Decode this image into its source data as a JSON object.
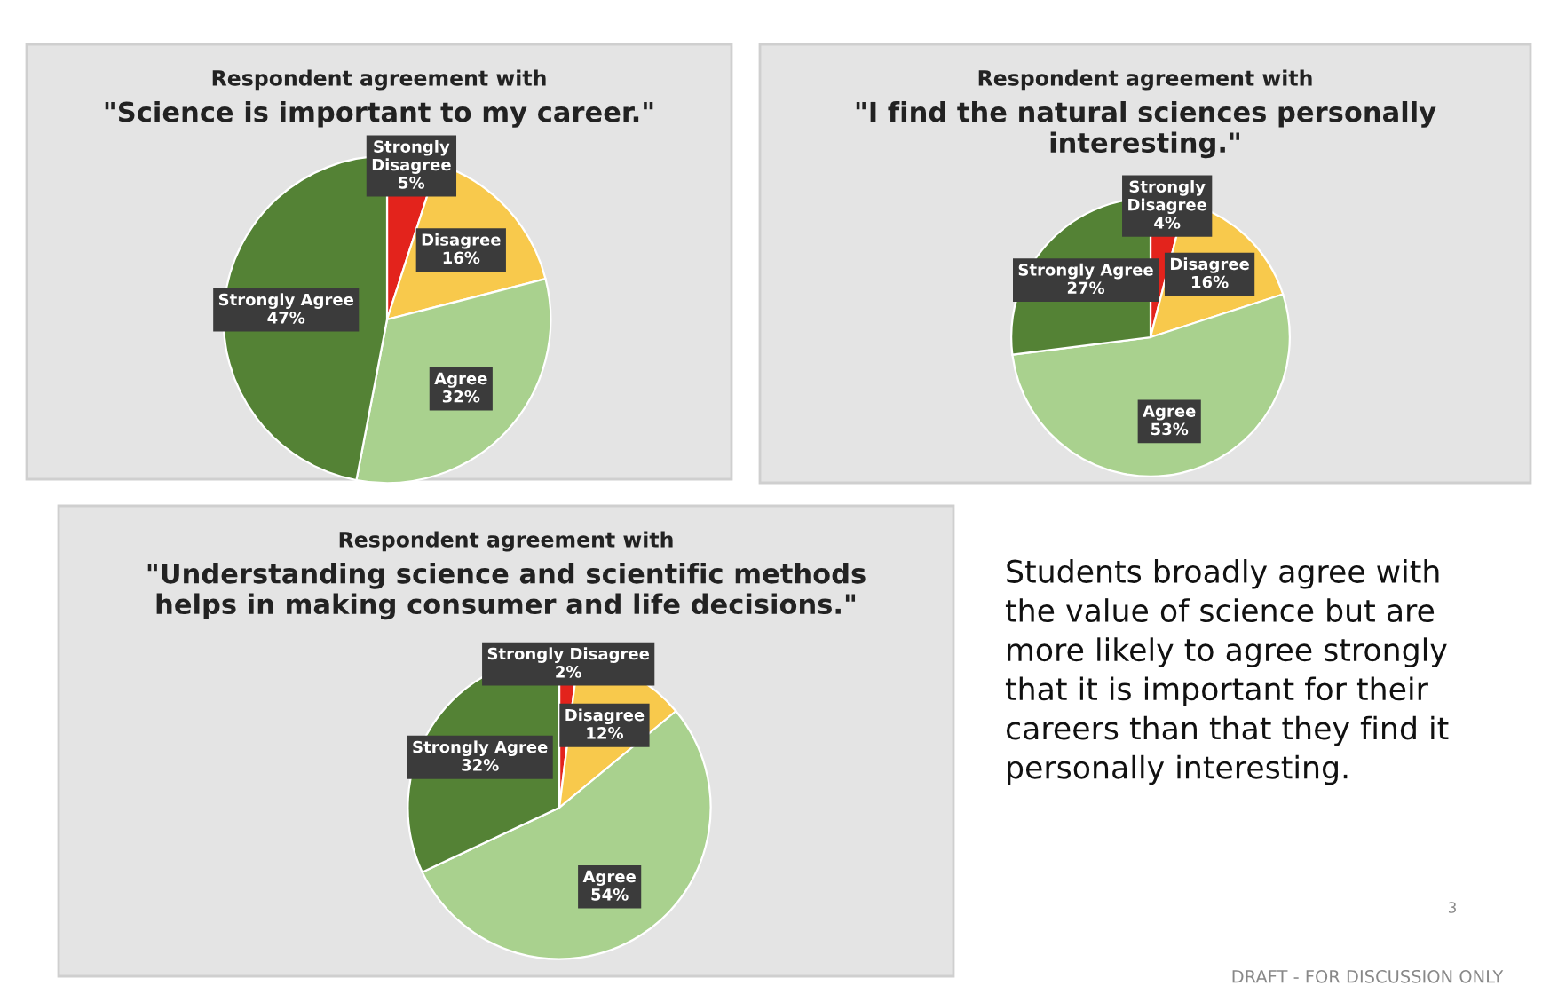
{
  "chart_data": [
    {
      "type": "pie",
      "title": "Respondent agreement with",
      "subtitle": "\"Science is important to my career.\"",
      "categories": [
        "Strongly Disagree",
        "Disagree",
        "Agree",
        "Strongly Agree"
      ],
      "values": [
        5,
        16,
        32,
        47
      ],
      "value_labels": [
        "5%",
        "16%",
        "32%",
        "47%"
      ],
      "colors": [
        "#e3231c",
        "#f8c94c",
        "#a9d18e",
        "#548235"
      ],
      "legend": false
    },
    {
      "type": "pie",
      "title": "Respondent agreement with",
      "subtitle": "\"I find the natural sciences personally interesting.\"",
      "categories": [
        "Strongly Disagree",
        "Disagree",
        "Agree",
        "Strongly Agree"
      ],
      "values": [
        4,
        16,
        53,
        27
      ],
      "value_labels": [
        "4%",
        "16%",
        "53%",
        "27%"
      ],
      "colors": [
        "#e3231c",
        "#f8c94c",
        "#a9d18e",
        "#548235"
      ],
      "legend": false
    },
    {
      "type": "pie",
      "title": "Respondent agreement with",
      "subtitle": "\"Understanding science and scientific methods helps in making consumer and life decisions.\"",
      "categories": [
        "Strongly Disagree",
        "Disagree",
        "Agree",
        "Strongly Agree"
      ],
      "values": [
        2,
        12,
        54,
        32
      ],
      "value_labels": [
        "2%",
        "12%",
        "54%",
        "32%"
      ],
      "colors": [
        "#e3231c",
        "#f8c94c",
        "#a9d18e",
        "#548235"
      ],
      "legend": false
    },
    {
      "type": "other",
      "annotations": [
        "Students broadly agree with the value of science but are more likely to agree strongly that it is important for their careers than that they find it personally interesting.",
        "3",
        "DRAFT - FOR DISCUSSION ONLY"
      ]
    }
  ]
}
